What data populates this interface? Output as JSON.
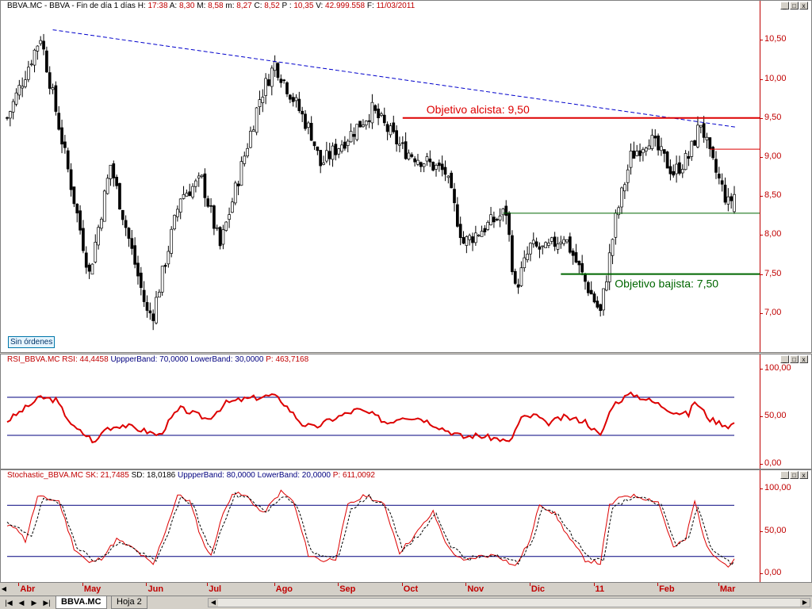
{
  "price_header": {
    "prefix": "BBVA.MC - BBVA - Fin de día 1 días ",
    "items": [
      {
        "k": "H:",
        "v": "17:38"
      },
      {
        "k": "A:",
        "v": "8,30"
      },
      {
        "k": "M:",
        "v": "8,58"
      },
      {
        "k": "m:",
        "v": "8,27"
      },
      {
        "k": "C:",
        "v": "8,52"
      },
      {
        "k": "P :",
        "v": "10,35"
      },
      {
        "k": "V:",
        "v": "42.999.558"
      },
      {
        "k": "F:",
        "v": "11/03/2011"
      }
    ]
  },
  "rsi_header": {
    "name": "RSI_BBVA.MC",
    "items": [
      {
        "k": "RSI:",
        "v": "44,4458"
      },
      {
        "k": "UppperBand:",
        "v": "70,0000"
      },
      {
        "k": "LowerBand:",
        "v": "30,0000"
      },
      {
        "k": "P:",
        "v": "463,7168"
      }
    ]
  },
  "stoch_header": {
    "name": "Stochastic_BBVA.MC",
    "items": [
      {
        "k": "SK:",
        "v": "21,7485"
      },
      {
        "k": "SD:",
        "v": "18,0186"
      },
      {
        "k": "UppperBand:",
        "v": "80,0000"
      },
      {
        "k": "LowerBand:",
        "v": "20,0000"
      },
      {
        "k": "P:",
        "v": "611,0092"
      }
    ]
  },
  "annotations": {
    "target_up": "Objetivo alcista: 9,50",
    "target_down": "Objetivo bajista: 7,50",
    "orders_label": "Sin órdenes"
  },
  "tabs": [
    "BBVA.MC",
    "Hoja 2"
  ],
  "window_buttons": [
    "_",
    "□",
    "x"
  ],
  "nav_buttons": [
    "|◀",
    "◀",
    "▶",
    "▶|"
  ],
  "colors": {
    "axis": "#c00000",
    "price": "#000000",
    "trendline": "#0000cc",
    "target_up": "#dd0000",
    "target_down": "#006600",
    "support": "#006600",
    "rsi": "#dd0000",
    "band": "#00007f",
    "stoch_k": "#dd0000",
    "stoch_d": "#000000"
  },
  "chart_data": [
    {
      "type": "candlestick",
      "title": "BBVA.MC - BBVA - Fin de día 1 días",
      "x_labels": [
        "Abr",
        "May",
        "Jun",
        "Jul",
        "Ago",
        "Sep",
        "Oct",
        "Nov",
        "Dic",
        "11",
        "Feb",
        "Mar"
      ],
      "x_label_index": [
        4,
        25,
        46,
        66,
        88,
        109,
        130,
        151,
        172,
        193,
        214,
        234
      ],
      "n_bars": 240,
      "ylim": [
        6.5,
        10.9
      ],
      "yticks": [
        "7,00",
        "7,50",
        "8,00",
        "8,50",
        "9,00",
        "9,50",
        "10,00",
        "10,50"
      ],
      "ytick_values": [
        7.0,
        7.5,
        8.0,
        8.5,
        9.0,
        9.5,
        10.0,
        10.5
      ],
      "close_path": [
        [
          0,
          9.5
        ],
        [
          11,
          10.55
        ],
        [
          27,
          7.5
        ],
        [
          34,
          8.9
        ],
        [
          46,
          7.0
        ],
        [
          48,
          7.0
        ],
        [
          57,
          8.5
        ],
        [
          64,
          8.7
        ],
        [
          70,
          7.85
        ],
        [
          83,
          9.75
        ],
        [
          88,
          10.2
        ],
        [
          100,
          9.3
        ],
        [
          103,
          8.9
        ],
        [
          113,
          9.3
        ],
        [
          120,
          9.6
        ],
        [
          130,
          9.1
        ],
        [
          144,
          8.8
        ],
        [
          150,
          7.9
        ],
        [
          164,
          8.3
        ],
        [
          167,
          7.3
        ],
        [
          172,
          7.85
        ],
        [
          177,
          7.8
        ],
        [
          183,
          8.0
        ],
        [
          190,
          7.4
        ],
        [
          195,
          7.0
        ],
        [
          200,
          8.2
        ],
        [
          205,
          9.0
        ],
        [
          211,
          9.25
        ],
        [
          219,
          8.8
        ],
        [
          224,
          9.0
        ],
        [
          228,
          9.45
        ],
        [
          231,
          9.0
        ],
        [
          237,
          8.4
        ],
        [
          239,
          8.52
        ]
      ],
      "ohlc_last": {
        "open": 8.3,
        "high": 8.58,
        "low": 8.27,
        "close": 8.52
      },
      "trendline": {
        "from": [
          15,
          10.63
        ],
        "to": [
          240,
          9.38
        ]
      },
      "target_up": {
        "value": 9.5,
        "from_index": 130,
        "label": "Objetivo alcista: 9,50"
      },
      "target_down": {
        "value": 7.5,
        "from_index": 182,
        "label": "Objetivo bajista: 7,50"
      },
      "support": {
        "value": 8.28,
        "from_index": 163
      },
      "resistance": {
        "value": 9.1,
        "from_index": 231
      }
    },
    {
      "type": "line",
      "title": "RSI_BBVA.MC",
      "ylim": [
        -5,
        105
      ],
      "yticks": [
        "0,00",
        "50,00",
        "100,00"
      ],
      "ytick_values": [
        0,
        50,
        100
      ],
      "bands": [
        70,
        30
      ],
      "path": [
        [
          0,
          45
        ],
        [
          11,
          70
        ],
        [
          16,
          67
        ],
        [
          22,
          38
        ],
        [
          27,
          28
        ],
        [
          29,
          22
        ],
        [
          32,
          37
        ],
        [
          38,
          41
        ],
        [
          46,
          34
        ],
        [
          50,
          30
        ],
        [
          55,
          52
        ],
        [
          57,
          58
        ],
        [
          62,
          52
        ],
        [
          66,
          47
        ],
        [
          72,
          64
        ],
        [
          78,
          68
        ],
        [
          83,
          70
        ],
        [
          87,
          72
        ],
        [
          90,
          67
        ],
        [
          97,
          42
        ],
        [
          101,
          38
        ],
        [
          106,
          46
        ],
        [
          115,
          57
        ],
        [
          120,
          52
        ],
        [
          125,
          43
        ],
        [
          130,
          50
        ],
        [
          136,
          48
        ],
        [
          144,
          36
        ],
        [
          150,
          28
        ],
        [
          154,
          30
        ],
        [
          162,
          26
        ],
        [
          165,
          22
        ],
        [
          169,
          48
        ],
        [
          174,
          51
        ],
        [
          177,
          42
        ],
        [
          183,
          49
        ],
        [
          190,
          45
        ],
        [
          195,
          29
        ],
        [
          199,
          62
        ],
        [
          204,
          72
        ],
        [
          206,
          73
        ],
        [
          214,
          63
        ],
        [
          219,
          55
        ],
        [
          224,
          52
        ],
        [
          226,
          66
        ],
        [
          231,
          47
        ],
        [
          237,
          40
        ],
        [
          240,
          44
        ]
      ]
    },
    {
      "type": "line",
      "title": "Stochastic_BBVA.MC",
      "ylim": [
        -10,
        110
      ],
      "yticks": [
        "0,00",
        "50,00",
        "100,00"
      ],
      "ytick_values": [
        0,
        50,
        100
      ],
      "bands": [
        80,
        20
      ],
      "series": [
        {
          "name": "SK",
          "values": [
            [
              0,
              55
            ],
            [
              3,
              55
            ],
            [
              6,
              38
            ],
            [
              10,
              90
            ],
            [
              17,
              85
            ],
            [
              22,
              30
            ],
            [
              27,
              12
            ],
            [
              31,
              18
            ],
            [
              36,
              40
            ],
            [
              42,
              28
            ],
            [
              48,
              10
            ],
            [
              53,
              60
            ],
            [
              56,
              92
            ],
            [
              60,
              85
            ],
            [
              64,
              40
            ],
            [
              67,
              20
            ],
            [
              70,
              60
            ],
            [
              74,
              95
            ],
            [
              79,
              90
            ],
            [
              84,
              70
            ],
            [
              90,
              96
            ],
            [
              94,
              85
            ],
            [
              99,
              22
            ],
            [
              104,
              15
            ],
            [
              108,
              18
            ],
            [
              112,
              80
            ],
            [
              118,
              92
            ],
            [
              124,
              80
            ],
            [
              129,
              25
            ],
            [
              134,
              45
            ],
            [
              140,
              72
            ],
            [
              145,
              30
            ],
            [
              150,
              14
            ],
            [
              155,
              20
            ],
            [
              161,
              22
            ],
            [
              167,
              8
            ],
            [
              172,
              40
            ],
            [
              175,
              82
            ],
            [
              180,
              70
            ],
            [
              185,
              40
            ],
            [
              190,
              16
            ],
            [
              195,
              12
            ],
            [
              198,
              80
            ],
            [
              203,
              92
            ],
            [
              208,
              90
            ],
            [
              214,
              84
            ],
            [
              219,
              30
            ],
            [
              223,
              40
            ],
            [
              226,
              85
            ],
            [
              230,
              30
            ],
            [
              234,
              18
            ],
            [
              237,
              8
            ],
            [
              240,
              22
            ]
          ]
        },
        {
          "name": "SD",
          "values": [
            [
              0,
              58
            ],
            [
              4,
              52
            ],
            [
              8,
              45
            ],
            [
              12,
              88
            ],
            [
              18,
              80
            ],
            [
              23,
              32
            ],
            [
              28,
              16
            ],
            [
              32,
              20
            ],
            [
              37,
              38
            ],
            [
              43,
              26
            ],
            [
              49,
              14
            ],
            [
              54,
              58
            ],
            [
              57,
              88
            ],
            [
              61,
              82
            ],
            [
              65,
              42
            ],
            [
              68,
              24
            ],
            [
              71,
              58
            ],
            [
              75,
              92
            ],
            [
              80,
              88
            ],
            [
              85,
              72
            ],
            [
              91,
              92
            ],
            [
              95,
              82
            ],
            [
              100,
              25
            ],
            [
              105,
              18
            ],
            [
              109,
              20
            ],
            [
              113,
              76
            ],
            [
              119,
              90
            ],
            [
              125,
              78
            ],
            [
              130,
              28
            ],
            [
              135,
              44
            ],
            [
              141,
              70
            ],
            [
              146,
              32
            ],
            [
              151,
              16
            ],
            [
              156,
              22
            ],
            [
              162,
              20
            ],
            [
              168,
              12
            ],
            [
              173,
              42
            ],
            [
              176,
              78
            ],
            [
              181,
              70
            ],
            [
              186,
              42
            ],
            [
              191,
              20
            ],
            [
              196,
              15
            ],
            [
              199,
              76
            ],
            [
              204,
              88
            ],
            [
              209,
              88
            ],
            [
              215,
              80
            ],
            [
              220,
              32
            ],
            [
              224,
              42
            ],
            [
              227,
              80
            ],
            [
              231,
              32
            ],
            [
              235,
              20
            ],
            [
              238,
              12
            ],
            [
              240,
              18
            ]
          ]
        }
      ]
    }
  ]
}
